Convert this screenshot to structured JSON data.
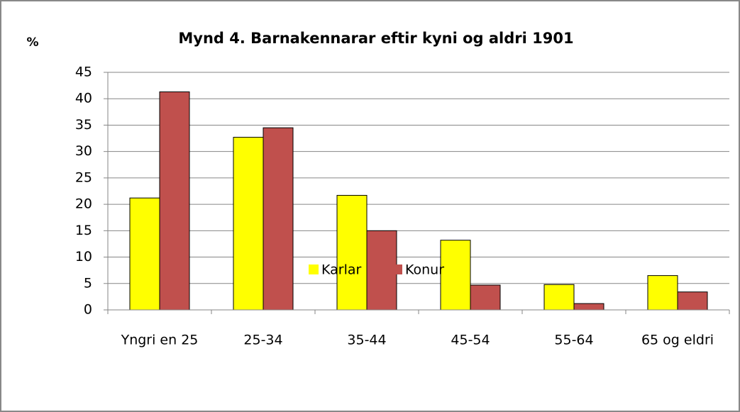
{
  "chart_data": {
    "type": "bar",
    "title": "Mynd 4. Barnakennarar eftir kyni og aldri 1901",
    "y_label": "%",
    "categories": [
      "Yngri en 25",
      "25-34",
      "35-44",
      "45-54",
      "55-64",
      "65 og eldri"
    ],
    "series": [
      {
        "name": "Karlar",
        "color": "#ffff00",
        "values": [
          21.2,
          32.7,
          21.7,
          13.2,
          4.8,
          6.5
        ]
      },
      {
        "name": "Konur",
        "color": "#c0504d",
        "values": [
          41.3,
          34.5,
          15.0,
          4.7,
          1.2,
          3.4
        ]
      }
    ],
    "ylim": [
      0,
      45
    ],
    "yticks": [
      0,
      5,
      10,
      15,
      20,
      25,
      30,
      35,
      40,
      45
    ],
    "grid": true,
    "legend": "bottom"
  }
}
